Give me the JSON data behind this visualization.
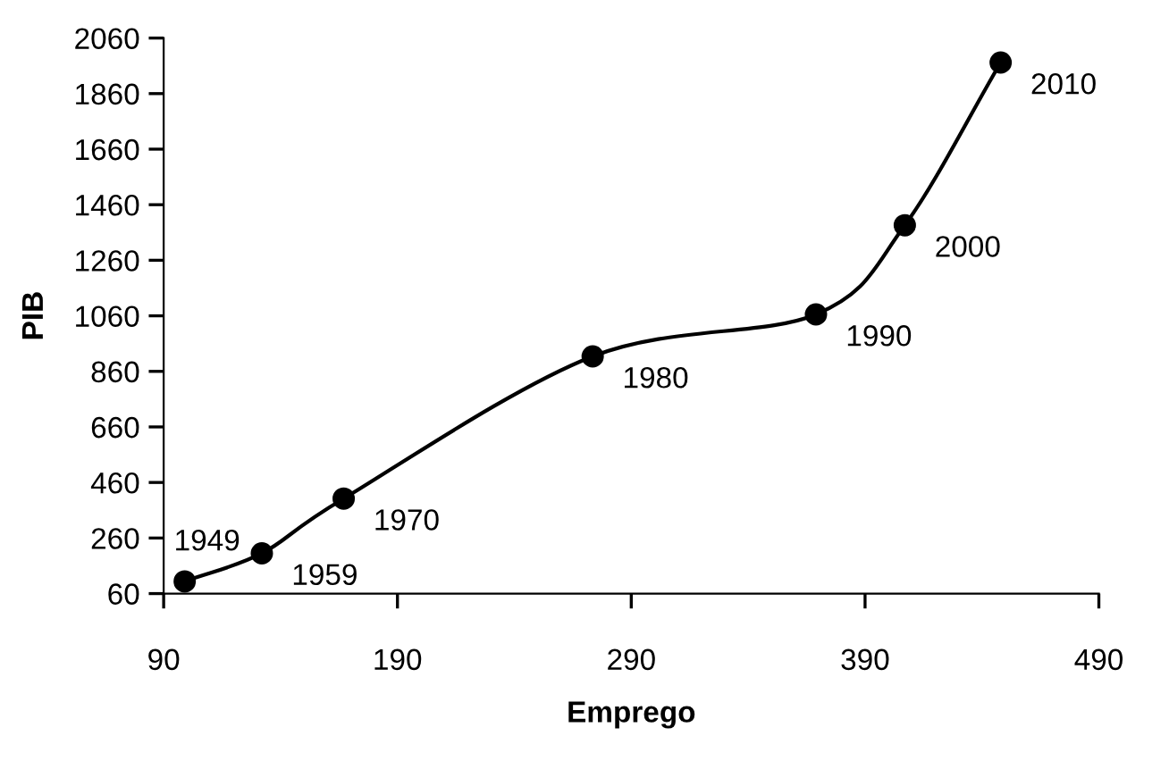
{
  "chart_data": {
    "type": "line",
    "xlabel": "Emprego",
    "ylabel": "PIB",
    "x": [
      99,
      132,
      167,
      273.5,
      369,
      407,
      448
    ],
    "series": [
      {
        "color": "#000000",
        "values": [
          104,
          205,
          402,
          914,
          1065,
          1386,
          1972
        ]
      }
    ],
    "marker": "circle",
    "line_style": "solid",
    "grid": false,
    "legend": false,
    "xlim": [
      90,
      490
    ],
    "xticks": [
      90,
      190,
      290,
      390,
      490
    ],
    "ylim": [
      60,
      2060
    ],
    "yticks": [
      60,
      260,
      460,
      660,
      860,
      1060,
      1260,
      1460,
      1660,
      1860,
      2060
    ],
    "annotations": [
      {
        "text": "1949",
        "x": 99,
        "y": 104
      },
      {
        "text": "1959",
        "x": 132,
        "y": 205
      },
      {
        "text": "1970",
        "x": 167,
        "y": 402
      },
      {
        "text": "1980",
        "x": 273.5,
        "y": 914
      },
      {
        "text": "1990",
        "x": 369,
        "y": 1065
      },
      {
        "text": "2000",
        "x": 407,
        "y": 1386
      },
      {
        "text": "2010",
        "x": 448,
        "y": 1972
      }
    ]
  }
}
